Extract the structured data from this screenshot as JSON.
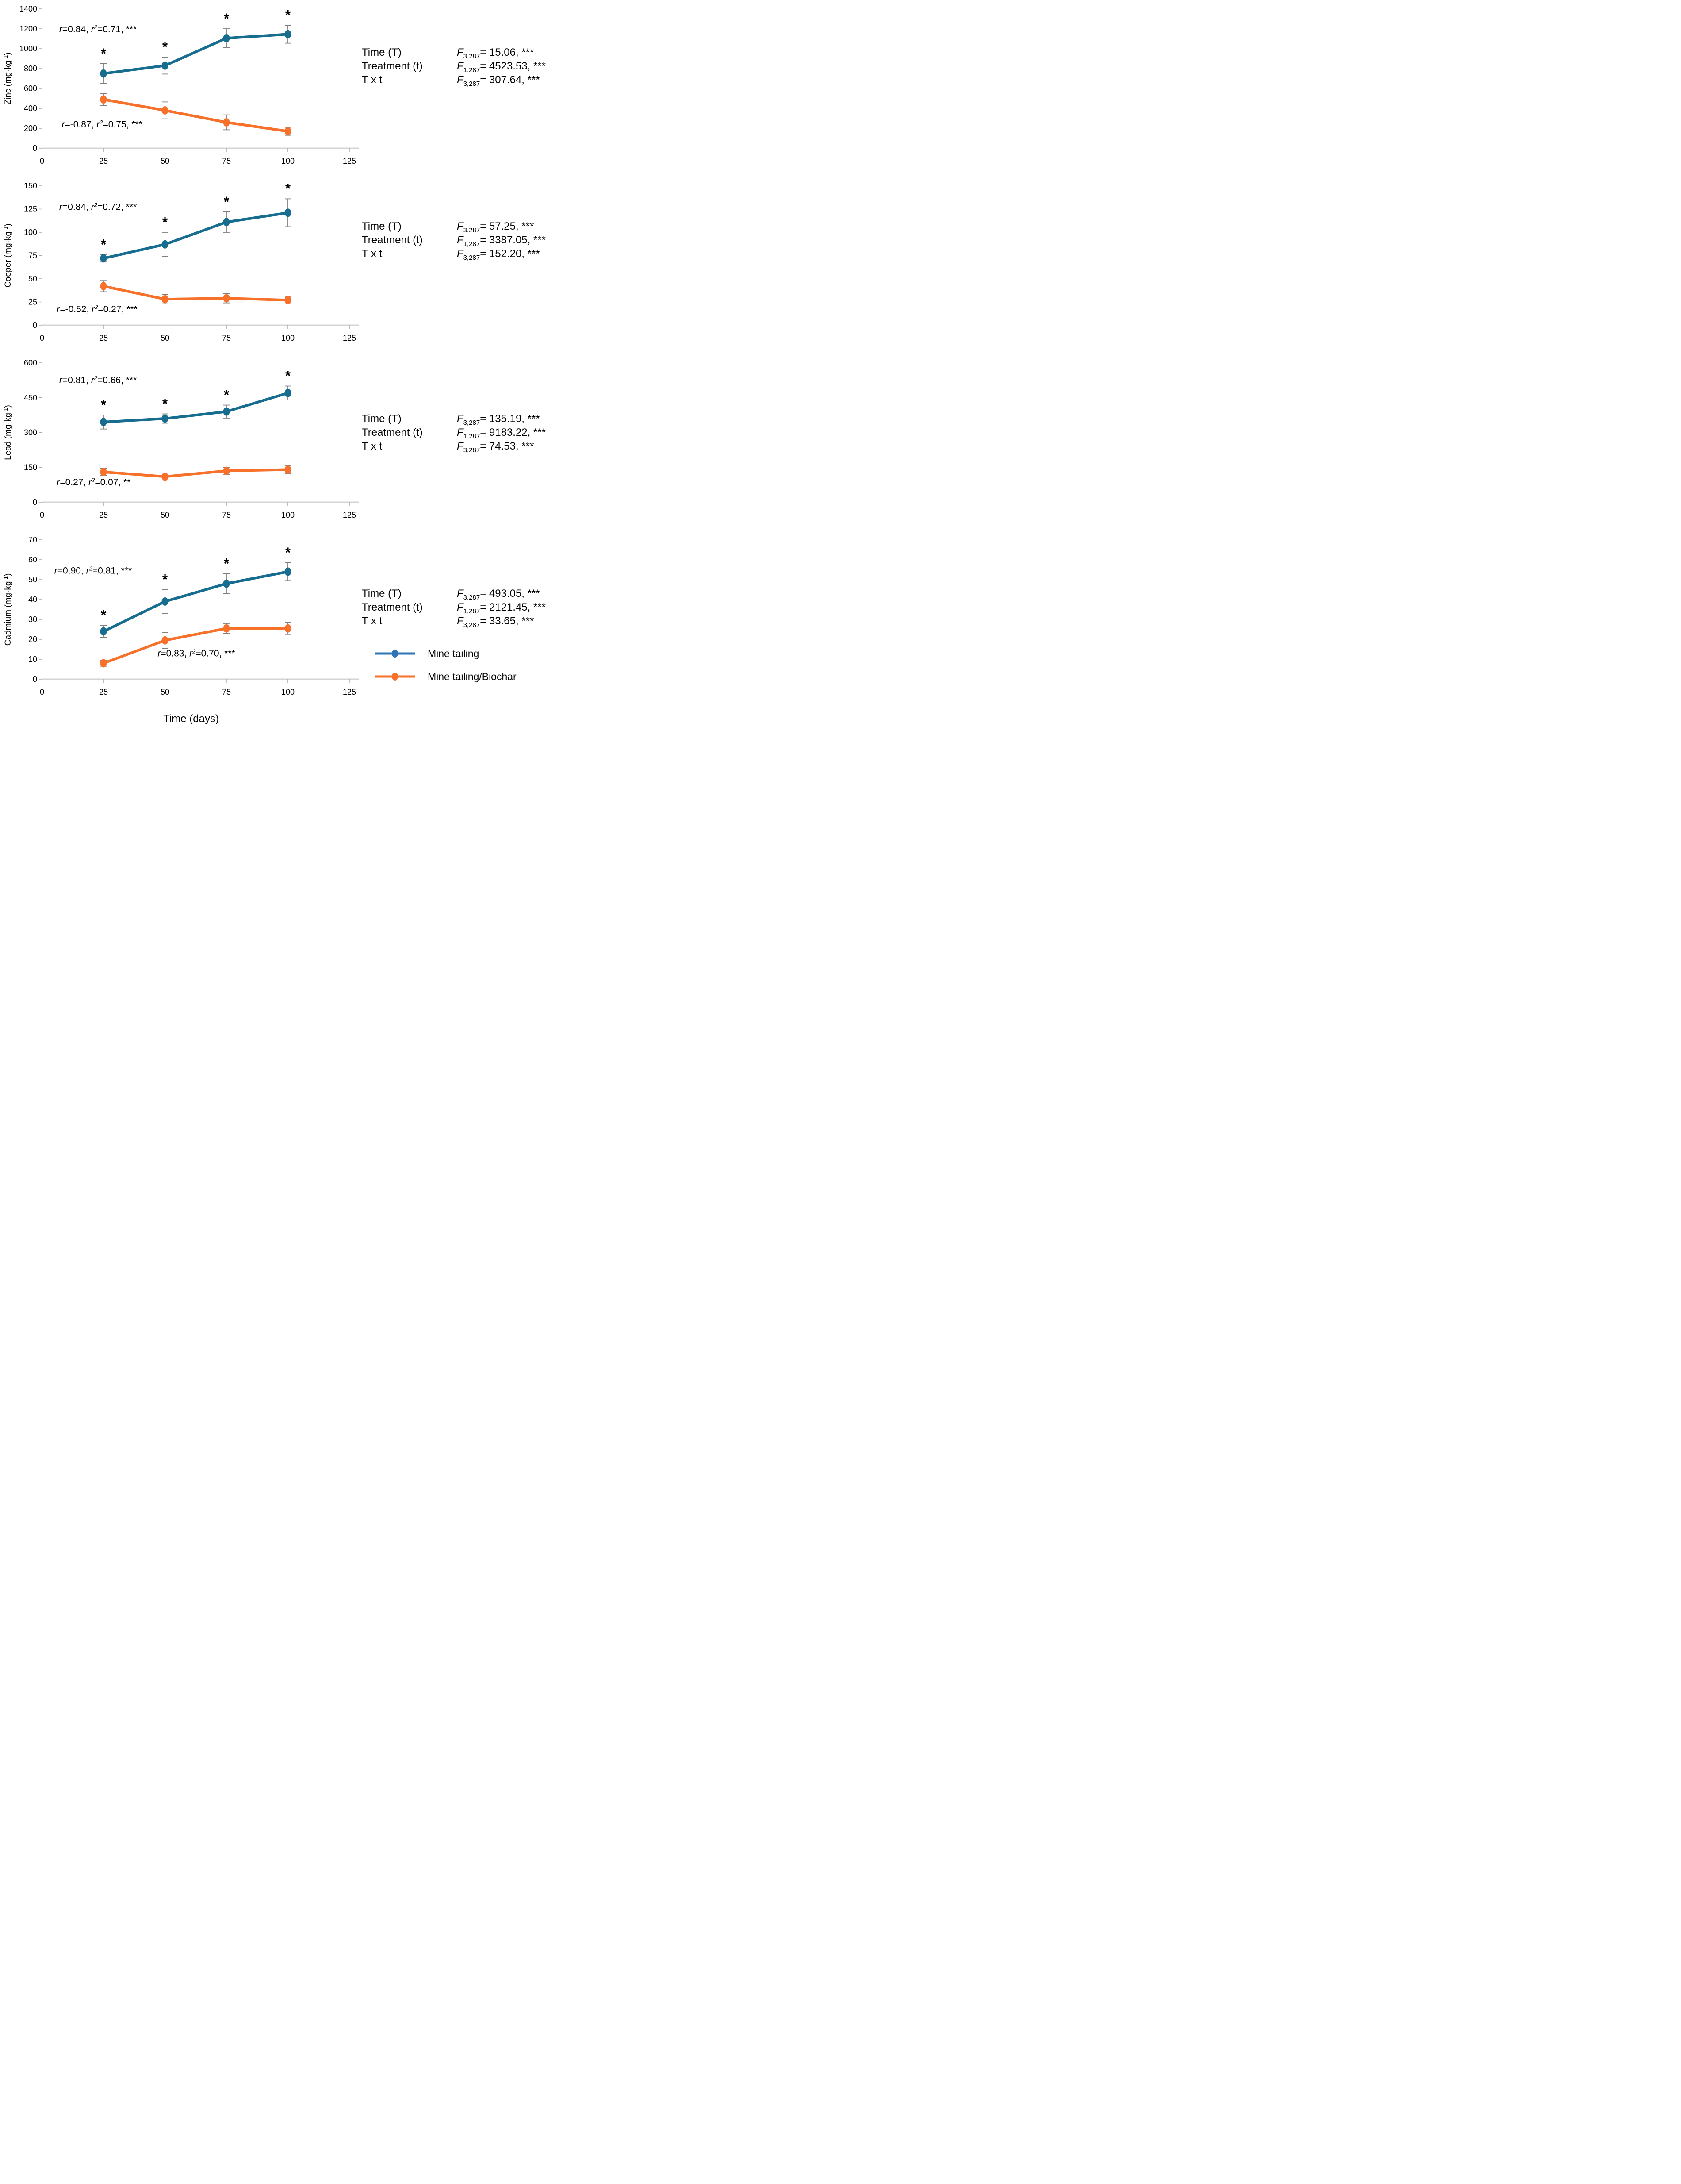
{
  "figure": {
    "x_axis_title": "Time (days)",
    "unit_prefix": " (mg·kg",
    "unit_sup": "-1",
    "unit_suffix": ")",
    "colors": {
      "series_blue": "#176D8F",
      "series_orange": "#F8712B",
      "legend_blue": "#2E75B6",
      "legend_orange": "#F8712B",
      "error_bar": "#7F7F7F",
      "axis_line": "#C9C9C9",
      "tick": "#A9A9A9"
    },
    "legend": [
      {
        "label": "Mine tailing",
        "color": "#2E75B6"
      },
      {
        "label": "Mine tailing/Biochar",
        "color": "#F8712B"
      }
    ]
  },
  "chart_data": [
    {
      "type": "line",
      "name": "zinc",
      "ylabel_metal": "Zinc",
      "ylim": [
        0,
        1400
      ],
      "yticks": [
        0,
        200,
        400,
        600,
        800,
        1000,
        1200,
        1400
      ],
      "xlim": [
        0,
        125
      ],
      "xticks": [
        0,
        25,
        50,
        75,
        100,
        125
      ],
      "x": [
        25,
        50,
        75,
        100
      ],
      "grid": false,
      "series": [
        {
          "name": "Mine tailing",
          "values": [
            750,
            830,
            1105,
            1145
          ],
          "errors": [
            100,
            85,
            95,
            90
          ],
          "starred": true
        },
        {
          "name": "Mine tailing/Biochar",
          "values": [
            490,
            380,
            260,
            170
          ],
          "errors": [
            60,
            85,
            75,
            40
          ],
          "starred": false
        }
      ],
      "annotations": [
        {
          "r": "0.84",
          "r2": "0.71",
          "sig": "***",
          "x": 7,
          "y": 1165
        },
        {
          "r": "-0.87",
          "r2": "0.75",
          "sig": "***",
          "x": 8,
          "y": 210
        }
      ],
      "stats": [
        {
          "label": "Time (T)",
          "f_sub": "3,287",
          "value": "15.06",
          "sig": "***"
        },
        {
          "label": "Treatment (t)",
          "f_sub": "1,287",
          "value": "4523.53",
          "sig": "***"
        },
        {
          "label": "T x t",
          "f_sub": "3,287",
          "value": "307.64",
          "sig": "***"
        }
      ]
    },
    {
      "type": "line",
      "name": "cooper",
      "ylabel_metal": "Cooper",
      "ylim": [
        0,
        150
      ],
      "yticks": [
        0,
        25,
        50,
        75,
        100,
        125,
        150
      ],
      "xlim": [
        0,
        125
      ],
      "xticks": [
        0,
        25,
        50,
        75,
        100,
        125
      ],
      "x": [
        25,
        50,
        75,
        100
      ],
      "grid": false,
      "series": [
        {
          "name": "Mine tailing",
          "values": [
            72,
            87,
            111,
            121
          ],
          "errors": [
            4,
            13,
            11,
            15
          ],
          "starred": true
        },
        {
          "name": "Mine tailing/Biochar",
          "values": [
            42,
            28,
            29,
            27
          ],
          "errors": [
            6,
            5,
            5,
            4
          ],
          "starred": false
        }
      ],
      "annotations": [
        {
          "r": "0.84",
          "r2": "0.72",
          "sig": "***",
          "x": 7,
          "y": 124
        },
        {
          "r": "-0.52",
          "r2": "0.27",
          "sig": "***",
          "x": 6,
          "y": 14
        }
      ],
      "stats": [
        {
          "label": "Time (T)",
          "f_sub": "3,287",
          "value": "57.25",
          "sig": "***"
        },
        {
          "label": "Treatment (t)",
          "f_sub": "1,287",
          "value": "3387.05",
          "sig": "***"
        },
        {
          "label": "T x t",
          "f_sub": "3,287",
          "value": "152.20",
          "sig": "***"
        }
      ]
    },
    {
      "type": "line",
      "name": "lead",
      "ylabel_metal": "Lead",
      "ylim": [
        0,
        600
      ],
      "yticks": [
        0,
        150,
        300,
        450,
        600
      ],
      "xlim": [
        0,
        125
      ],
      "xticks": [
        0,
        25,
        50,
        75,
        100,
        125
      ],
      "x": [
        25,
        50,
        75,
        100
      ],
      "grid": false,
      "series": [
        {
          "name": "Mine tailing",
          "values": [
            345,
            360,
            390,
            470
          ],
          "errors": [
            30,
            20,
            28,
            30
          ],
          "starred": true
        },
        {
          "name": "Mine tailing/Biochar",
          "values": [
            130,
            110,
            135,
            140
          ],
          "errors": [
            15,
            10,
            15,
            18
          ],
          "starred": false
        }
      ],
      "annotations": [
        {
          "r": "0.81",
          "r2": "0.66",
          "sig": "***",
          "x": 7,
          "y": 512
        },
        {
          "r": "0.27",
          "r2": "0.07",
          "sig": "**",
          "x": 6,
          "y": 73
        }
      ],
      "stats": [
        {
          "label": "Time (T)",
          "f_sub": "3,287",
          "value": "135.19",
          "sig": "***"
        },
        {
          "label": "Treatment (t)",
          "f_sub": "1,287",
          "value": "9183.22",
          "sig": "***"
        },
        {
          "label": "T x t",
          "f_sub": "3,287",
          "value": "74.53",
          "sig": "***"
        }
      ]
    },
    {
      "type": "line",
      "name": "cadmium",
      "ylabel_metal": "Cadmium",
      "ylim": [
        0,
        70
      ],
      "yticks": [
        0,
        10,
        20,
        30,
        40,
        50,
        60,
        70
      ],
      "xlim": [
        0,
        125
      ],
      "xticks": [
        0,
        25,
        50,
        75,
        100,
        125
      ],
      "x": [
        25,
        50,
        75,
        100
      ],
      "grid": false,
      "series": [
        {
          "name": "Mine tailing",
          "values": [
            24,
            39,
            48,
            54
          ],
          "errors": [
            3,
            6,
            5,
            4.5
          ],
          "starred": true
        },
        {
          "name": "Mine tailing/Biochar",
          "values": [
            8,
            19.5,
            25.5,
            25.5
          ],
          "errors": [
            1.5,
            4,
            2.5,
            3
          ],
          "starred": false
        }
      ],
      "annotations": [
        {
          "r": "0.90",
          "r2": "0.81",
          "sig": "***",
          "x": 5,
          "y": 53
        },
        {
          "r": "0.83",
          "r2": "0.70",
          "sig": "***",
          "x": 47,
          "y": 11.5
        }
      ],
      "stats": [
        {
          "label": "Time (T)",
          "f_sub": "3,287",
          "value": "493.05",
          "sig": "***"
        },
        {
          "label": "Treatment (t)",
          "f_sub": "1,287",
          "value": "2121.45",
          "sig": "***"
        },
        {
          "label": "T x t",
          "f_sub": "3,287",
          "value": "33.65",
          "sig": "***"
        }
      ]
    }
  ]
}
